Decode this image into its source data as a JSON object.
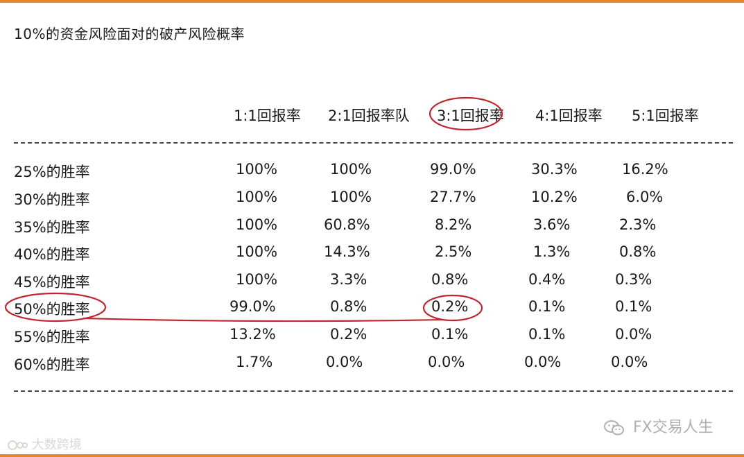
{
  "title": "10%的资金风险面对的破产风险概率",
  "column_headers": [
    "1:1回报率",
    "2:1回报率队",
    "3:1回报率",
    "4:1回报率",
    "5:1回报率"
  ],
  "rows": [
    {
      "label": "25%的胜率",
      "values": [
        "100%",
        "100%",
        "99.0%",
        "30.3%",
        "16.2%"
      ]
    },
    {
      "label": "30%的胜率",
      "values": [
        "100%",
        "100%",
        "27.7%",
        "10.2%",
        "6.0%"
      ]
    },
    {
      "label": "35%的胜率",
      "values": [
        "100%",
        "60.8%",
        "8.2%",
        "3.6%",
        "2.3%"
      ]
    },
    {
      "label": "40%的胜率",
      "values": [
        "100%",
        "14.3%",
        "2.5%",
        "1.3%",
        "0.8%"
      ]
    },
    {
      "label": "45%的胜率",
      "values": [
        "100%",
        "3.3%",
        "0.8%",
        "0.4%",
        "0.3%"
      ]
    },
    {
      "label": "50%的胜率",
      "values": [
        "99.0%",
        "0.8%",
        "0.2%",
        "0.1%",
        "0.1%"
      ]
    },
    {
      "label": "55%的胜率",
      "values": [
        "13.2%",
        "0.2%",
        "0.1%",
        "0.1%",
        "0.0%"
      ]
    },
    {
      "label": "60%的胜率",
      "values": [
        "1.7%",
        "0.0%",
        "0.0%",
        "0.0%",
        "0.0%"
      ]
    }
  ],
  "watermark_left": "大数跨境",
  "watermark_right": "FX交易人生",
  "colors": {
    "frame": "#e8842c",
    "annotation": "#c0262f",
    "text": "#1a1a1a"
  }
}
